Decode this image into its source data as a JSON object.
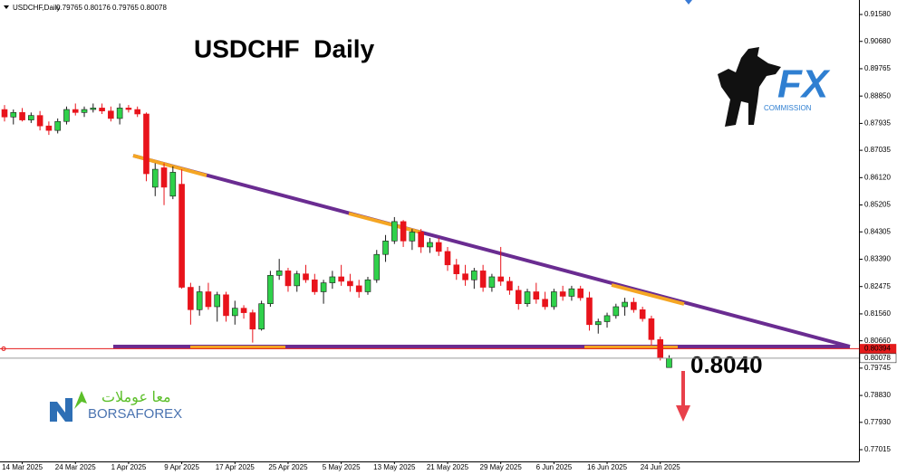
{
  "chart_data": {
    "type": "candlestick",
    "header": "USDCHF,Daily",
    "title": "USDCHF  Daily",
    "annotation": "0.8040",
    "logo_fx": "FX",
    "logo_fx_sub": "COMMISSION",
    "logo_borsa": "BORSAFOREX",
    "logo_arabic": "معا عوملات",
    "up_color": "#2fd14a",
    "down_color": "#e8131b",
    "categories": [
      null,
      null,
      "14 Mar 2025",
      null,
      null,
      null,
      null,
      null,
      "24 Mar 2025",
      null,
      null,
      null,
      null,
      null,
      "1 Apr 2025",
      null,
      null,
      null,
      null,
      null,
      "9 Apr 2025",
      null,
      null,
      null,
      null,
      null,
      "17 Apr 2025",
      null,
      null,
      null,
      null,
      null,
      "25 Apr 2025",
      null,
      null,
      null,
      null,
      null,
      "5 May 2025",
      null,
      null,
      null,
      null,
      null,
      "13 May 2025",
      null,
      null,
      null,
      null,
      null,
      "21 May 2025",
      null,
      null,
      null,
      null,
      null,
      "29 May 2025",
      null,
      null,
      null,
      null,
      null,
      "6 Jun 2025",
      null,
      null,
      null,
      null,
      null,
      "16 Jun 2025",
      null,
      null,
      null,
      null,
      null,
      "24 Jun 2025",
      null
    ],
    "open": [
      0.884,
      0.8815,
      0.883,
      0.8805,
      0.882,
      0.8785,
      0.877,
      0.88,
      0.884,
      0.883,
      0.884,
      0.8845,
      0.8835,
      0.881,
      0.8845,
      0.884,
      0.8825,
      0.858,
      0.8645,
      0.855,
      0.859,
      0.8245,
      0.817,
      0.823,
      0.818,
      0.822,
      0.815,
      0.8175,
      0.816,
      0.8105,
      0.819,
      0.8285,
      0.83,
      0.825,
      0.829,
      0.827,
      0.823,
      0.826,
      0.828,
      0.8265,
      0.825,
      0.823,
      0.827,
      0.8355,
      0.84,
      0.8465,
      0.84,
      0.843,
      0.838,
      0.8395,
      0.8365,
      0.832,
      0.829,
      0.827,
      0.83,
      0.8245,
      0.828,
      0.8265,
      0.8235,
      0.819,
      0.823,
      0.8205,
      0.818,
      0.823,
      0.8215,
      0.824,
      0.821,
      0.812,
      0.813,
      0.815,
      0.818,
      0.8195,
      0.817,
      0.814,
      0.807,
      0.79765
    ],
    "high": [
      0.8855,
      0.884,
      0.8845,
      0.883,
      0.8835,
      0.88,
      0.881,
      0.885,
      0.886,
      0.885,
      0.886,
      0.886,
      0.885,
      0.886,
      0.8855,
      0.885,
      0.883,
      0.866,
      0.866,
      0.865,
      0.864,
      0.826,
      0.825,
      0.826,
      0.823,
      0.823,
      0.82,
      0.8185,
      0.817,
      0.82,
      0.83,
      0.834,
      0.831,
      0.83,
      0.832,
      0.829,
      0.827,
      0.83,
      0.832,
      0.829,
      0.827,
      0.828,
      0.837,
      0.842,
      0.848,
      0.847,
      0.844,
      0.844,
      0.841,
      0.841,
      0.838,
      0.834,
      0.832,
      0.831,
      0.832,
      0.829,
      0.838,
      0.828,
      0.825,
      0.824,
      0.826,
      0.823,
      0.824,
      0.825,
      0.825,
      0.825,
      0.823,
      0.814,
      0.816,
      0.819,
      0.821,
      0.821,
      0.818,
      0.815,
      0.808,
      0.80176
    ],
    "low": [
      0.88,
      0.879,
      0.88,
      0.8795,
      0.877,
      0.8755,
      0.876,
      0.879,
      0.882,
      0.8815,
      0.883,
      0.8825,
      0.88,
      0.879,
      0.883,
      0.8815,
      0.86,
      0.855,
      0.852,
      0.854,
      0.824,
      0.812,
      0.815,
      0.817,
      0.813,
      0.813,
      0.812,
      0.814,
      0.806,
      0.81,
      0.818,
      0.827,
      0.823,
      0.823,
      0.826,
      0.822,
      0.819,
      0.824,
      0.825,
      0.823,
      0.821,
      0.822,
      0.826,
      0.833,
      0.839,
      0.838,
      0.837,
      0.836,
      0.836,
      0.835,
      0.83,
      0.827,
      0.825,
      0.824,
      0.823,
      0.823,
      0.825,
      0.822,
      0.817,
      0.818,
      0.819,
      0.817,
      0.817,
      0.82,
      0.82,
      0.82,
      0.81,
      0.809,
      0.811,
      0.814,
      0.815,
      0.816,
      0.813,
      0.805,
      0.8,
      0.79765
    ],
    "close": [
      0.8815,
      0.883,
      0.8805,
      0.882,
      0.8785,
      0.877,
      0.88,
      0.884,
      0.883,
      0.884,
      0.8845,
      0.8835,
      0.881,
      0.8845,
      0.884,
      0.8825,
      0.8625,
      0.864,
      0.858,
      0.863,
      0.8245,
      0.817,
      0.823,
      0.818,
      0.822,
      0.815,
      0.8175,
      0.816,
      0.8105,
      0.819,
      0.8285,
      0.83,
      0.825,
      0.829,
      0.827,
      0.823,
      0.826,
      0.828,
      0.8265,
      0.825,
      0.823,
      0.827,
      0.8355,
      0.84,
      0.8465,
      0.84,
      0.843,
      0.838,
      0.8395,
      0.8365,
      0.832,
      0.829,
      0.827,
      0.83,
      0.8245,
      0.828,
      0.8265,
      0.8235,
      0.819,
      0.823,
      0.8205,
      0.818,
      0.823,
      0.8215,
      0.824,
      0.821,
      0.812,
      0.813,
      0.815,
      0.818,
      0.8195,
      0.817,
      0.814,
      0.807,
      0.801,
      0.80078
    ],
    "ylim": [
      0.76622,
      0.92065
    ],
    "yticks": [
      {
        "value": 0.9158,
        "label": "0.91580"
      },
      {
        "value": 0.9068,
        "label": "0.90680"
      },
      0.89765,
      {
        "value": 0.8885,
        "label": "0.88850"
      },
      0.87935,
      0.87035,
      {
        "value": 0.8612,
        "label": "0.86120"
      },
      0.85205,
      0.84305,
      {
        "value": 0.8339,
        "label": "0.83390"
      },
      0.82475,
      {
        "value": 0.8156,
        "label": "0.81560"
      },
      {
        "value": 0.8066,
        "label": "0.80660"
      },
      0.79745,
      {
        "value": 0.7883,
        "label": "0.78830"
      },
      {
        "value": 0.7793,
        "label": "0.77930"
      },
      0.77015
    ],
    "price_lines": [
      {
        "value": 0.80394,
        "color": "#e41b1b"
      },
      {
        "value": 0.80078,
        "color": "#9a9a9a"
      }
    ],
    "grid": false
  }
}
